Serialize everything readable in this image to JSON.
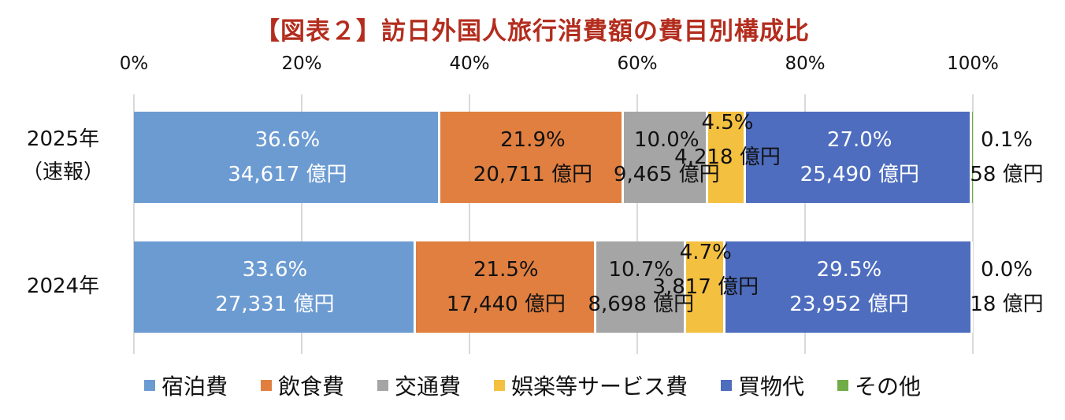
{
  "title": "【図表２】訪日外国人旅行消費額の費目別構成比",
  "axis": {
    "ticks": [
      "0%",
      "20%",
      "40%",
      "60%",
      "80%",
      "100%"
    ]
  },
  "legend": [
    {
      "name": "宿泊費",
      "color": "#6c9bd2"
    },
    {
      "name": "飲食費",
      "color": "#e07f40"
    },
    {
      "name": "交通費",
      "color": "#a5a5a5"
    },
    {
      "name": "娯楽等サービス費",
      "color": "#f4c040"
    },
    {
      "name": "買物代",
      "color": "#4e6dbf"
    },
    {
      "name": "その他",
      "color": "#70ad47"
    }
  ],
  "rows": [
    {
      "label1": "2025年",
      "label2": "（速報）",
      "segments": [
        {
          "pct": "36.6%",
          "amt": "34,617 億円"
        },
        {
          "pct": "21.9%",
          "amt": "20,711 億円"
        },
        {
          "pct": "10.0%",
          "amt": "9,465 億円"
        },
        {
          "pct": "4.5%",
          "amt": "4,218 億円"
        },
        {
          "pct": "27.0%",
          "amt": "25,490 億円"
        },
        {
          "pct": "0.1%",
          "amt": "58 億円"
        }
      ]
    },
    {
      "label1": "2024年",
      "label2": "",
      "segments": [
        {
          "pct": "33.6%",
          "amt": "27,331 億円"
        },
        {
          "pct": "21.5%",
          "amt": "17,440 億円"
        },
        {
          "pct": "10.7%",
          "amt": "8,698 億円"
        },
        {
          "pct": "4.7%",
          "amt": "3,817 億円"
        },
        {
          "pct": "29.5%",
          "amt": "23,952 億円"
        },
        {
          "pct": "0.0%",
          "amt": "18 億円"
        }
      ]
    }
  ],
  "chart_data": {
    "type": "bar",
    "orientation": "horizontal",
    "stacked": "percent",
    "title": "【図表２】訪日外国人旅行消費額の費目別構成比",
    "categories": [
      "2025年（速報）",
      "2024年"
    ],
    "series": [
      {
        "name": "宿泊費",
        "values": [
          36.6,
          33.6
        ],
        "amounts_oku_yen": [
          34617,
          27331
        ]
      },
      {
        "name": "飲食費",
        "values": [
          21.9,
          21.5
        ],
        "amounts_oku_yen": [
          20711,
          17440
        ]
      },
      {
        "name": "交通費",
        "values": [
          10.0,
          10.7
        ],
        "amounts_oku_yen": [
          9465,
          8698
        ]
      },
      {
        "name": "娯楽等サービス費",
        "values": [
          4.5,
          4.7
        ],
        "amounts_oku_yen": [
          4218,
          3817
        ]
      },
      {
        "name": "買物代",
        "values": [
          27.0,
          29.5
        ],
        "amounts_oku_yen": [
          25490,
          23952
        ]
      },
      {
        "name": "その他",
        "values": [
          0.1,
          0.0
        ],
        "amounts_oku_yen": [
          58,
          18
        ]
      }
    ],
    "xlim": [
      0,
      100
    ],
    "xticks": [
      "0%",
      "20%",
      "40%",
      "60%",
      "80%",
      "100%"
    ],
    "grid": true,
    "legend_position": "bottom"
  }
}
